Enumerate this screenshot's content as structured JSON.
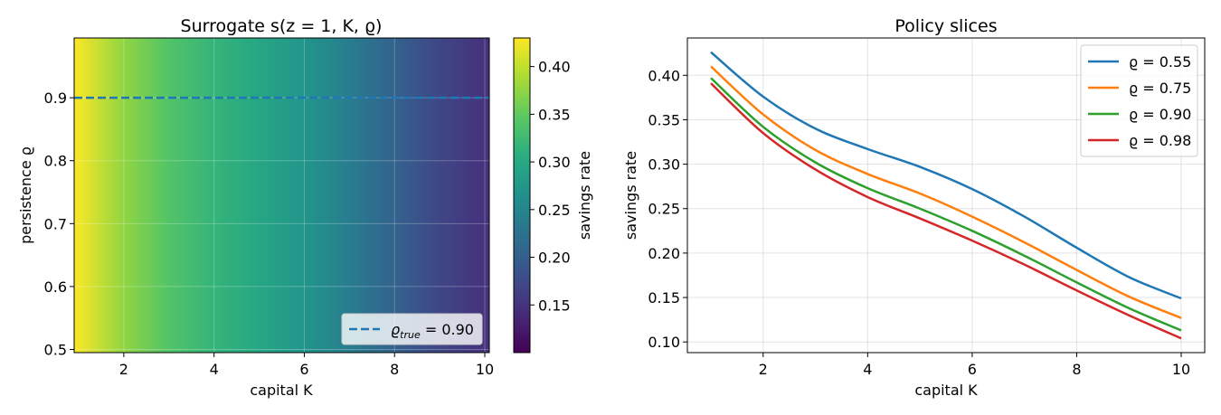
{
  "chart_data": [
    {
      "type": "heatmap",
      "title": "Surrogate s(z = 1, K, ϱ)",
      "xlabel": "capital K",
      "ylabel": "persistence ϱ",
      "xlim": [
        0.9,
        10.1
      ],
      "ylim": [
        0.495,
        0.995
      ],
      "xticks": [
        2,
        4,
        6,
        8,
        10
      ],
      "yticks": [
        0.5,
        0.6,
        0.7,
        0.8,
        0.9
      ],
      "grid": true,
      "colorbar": {
        "label": "savings rate",
        "colormap": "viridis",
        "range": [
          0.1,
          0.43
        ],
        "ticks": [
          0.15,
          0.2,
          0.25,
          0.3,
          0.35,
          0.4
        ]
      },
      "reference_line": {
        "y": 0.9,
        "color": "#1f77b4",
        "style": "dashed",
        "label": "ϱ_true = 0.90"
      },
      "legend_label_main": "ϱ",
      "legend_label_sub": "true",
      "legend_label_value": " = 0.90",
      "legend_location": "lower-right",
      "profile": {
        "K": [
          1,
          2,
          3,
          4,
          5,
          6,
          7,
          8,
          9,
          10
        ],
        "s": [
          0.425,
          0.375,
          0.34,
          0.317,
          0.297,
          0.272,
          0.24,
          0.205,
          0.17,
          0.148
        ]
      }
    },
    {
      "type": "line",
      "title": "Policy slices",
      "xlabel": "capital K",
      "ylabel": "savings rate",
      "xlim": [
        0.55,
        10.45
      ],
      "ylim": [
        0.088,
        0.442
      ],
      "xticks": [
        2,
        4,
        6,
        8,
        10
      ],
      "yticks": [
        0.1,
        0.15,
        0.2,
        0.25,
        0.3,
        0.35,
        0.4
      ],
      "grid": true,
      "legend_location": "top-right",
      "x": [
        1,
        2,
        3,
        4,
        5,
        6,
        7,
        8,
        9,
        10
      ],
      "series": [
        {
          "name": "ϱ = 0.55",
          "color": "#1f77b4",
          "values": [
            0.426,
            0.376,
            0.34,
            0.317,
            0.297,
            0.272,
            0.241,
            0.206,
            0.173,
            0.149
          ]
        },
        {
          "name": "ϱ = 0.75",
          "color": "#ff7f0e",
          "values": [
            0.41,
            0.356,
            0.316,
            0.289,
            0.267,
            0.241,
            0.212,
            0.181,
            0.151,
            0.127
          ]
        },
        {
          "name": "ϱ = 0.90",
          "color": "#2ca02c",
          "values": [
            0.397,
            0.342,
            0.302,
            0.273,
            0.25,
            0.225,
            0.197,
            0.167,
            0.138,
            0.113
          ]
        },
        {
          "name": "ϱ = 0.98",
          "color": "#d62728",
          "values": [
            0.391,
            0.335,
            0.294,
            0.263,
            0.239,
            0.214,
            0.187,
            0.158,
            0.13,
            0.104
          ]
        }
      ]
    }
  ]
}
